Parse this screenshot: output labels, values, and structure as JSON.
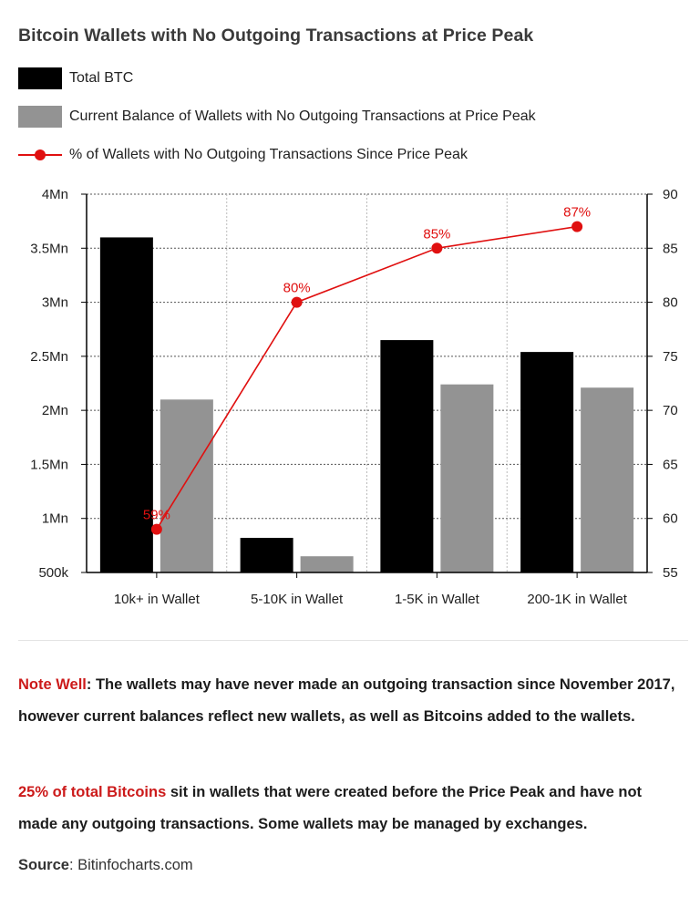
{
  "title": "Bitcoin Wallets with No Outgoing Transactions at Price Peak",
  "legend": {
    "total": "Total BTC",
    "balance": "Current Balance of Wallets with No Outgoing Transactions at Price Peak",
    "pct": "% of Wallets with No Outgoing Transactions Since Price Peak"
  },
  "colors": {
    "total": "#000000",
    "balance": "#939393",
    "pct": "#e01010"
  },
  "chart_data": {
    "type": "bar",
    "categories": [
      "10k+ in Wallet",
      "5-10K in Wallet",
      "1-5K in Wallet",
      "200-1K in Wallet"
    ],
    "series": [
      {
        "name": "Total BTC",
        "axis": "left",
        "values": [
          3.6,
          0.82,
          2.65,
          2.54
        ]
      },
      {
        "name": "Current Balance of Wallets with No Outgoing Transactions at Price Peak",
        "axis": "left",
        "values": [
          2.1,
          0.65,
          2.24,
          2.21
        ]
      },
      {
        "name": "% of Wallets with No Outgoing Transactions Since Price Peak",
        "type": "line",
        "axis": "right",
        "values": [
          59,
          80,
          85,
          87
        ],
        "labels": [
          "59%",
          "80%",
          "85%",
          "87%"
        ]
      }
    ],
    "ylim_left": [
      0.5,
      4
    ],
    "yticks_left": [
      0.5,
      1,
      1.5,
      2,
      2.5,
      3,
      3.5,
      4
    ],
    "ytick_labels_left": [
      "500k",
      "1Mn",
      "1.5Mn",
      "2Mn",
      "2.5Mn",
      "3Mn",
      "3.5Mn",
      "4Mn"
    ],
    "ylim_right": [
      55,
      90
    ],
    "yticks_right": [
      55,
      60,
      65,
      70,
      75,
      80,
      85,
      90
    ],
    "ytick_labels_right": [
      "55",
      "60",
      "65",
      "70",
      "75",
      "80",
      "85",
      "90"
    ],
    "grid": true,
    "legend_position": "top-left"
  },
  "note": {
    "label": "Note Well",
    "colon": ":",
    "text": " The wallets may have never made an outgoing transaction since November 2017, however current balances reflect new wallets, as well as Bitcoins added to the wallets."
  },
  "stat": {
    "highlight": "25% of total Bitcoins",
    "text": " sit in wallets that were created before the Price Peak and have not made any outgoing transactions. Some wallets may be managed by exchanges."
  },
  "source": {
    "label": "Source",
    "colon": ":",
    "value": " Bitinfocharts.com"
  }
}
